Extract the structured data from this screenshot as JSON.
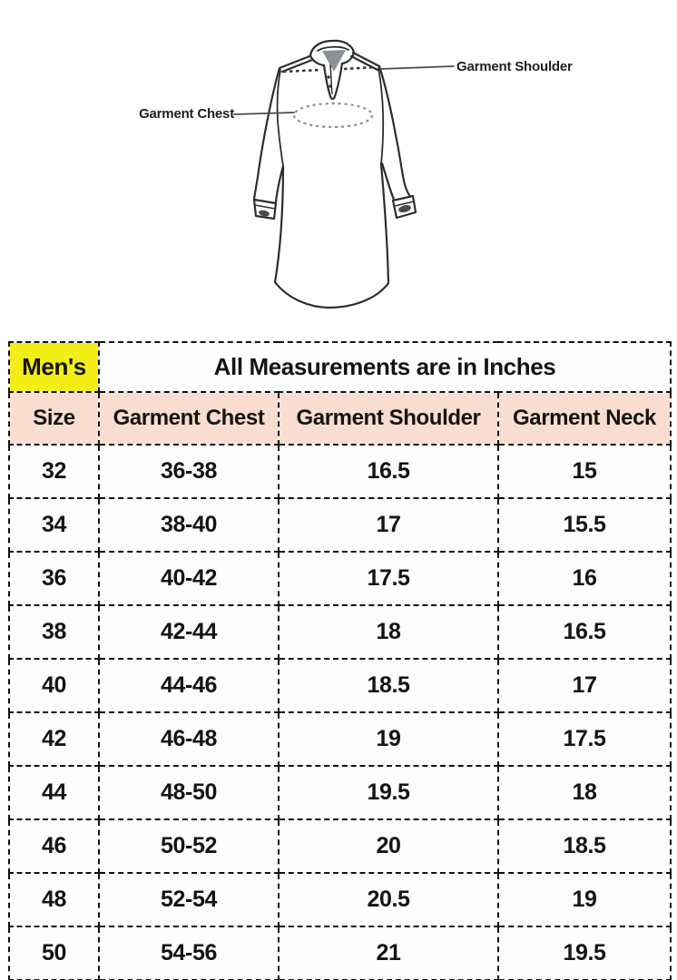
{
  "diagram": {
    "chest_label": "Garment Chest",
    "shoulder_label": "Garment Shoulder"
  },
  "table": {
    "group_label": "Men's",
    "title": "All Measurements are in Inches",
    "columns": [
      "Size",
      "Garment Chest",
      "Garment Shoulder",
      "Garment Neck"
    ],
    "column_keys": [
      "size",
      "chest",
      "shoulder",
      "neck"
    ],
    "rows": [
      [
        "32",
        "36-38",
        "16.5",
        "15"
      ],
      [
        "34",
        "38-40",
        "17",
        "15.5"
      ],
      [
        "36",
        "40-42",
        "17.5",
        "16"
      ],
      [
        "38",
        "42-44",
        "18",
        "16.5"
      ],
      [
        "40",
        "44-46",
        "18.5",
        "17"
      ],
      [
        "42",
        "46-48",
        "19",
        "17.5"
      ],
      [
        "44",
        "48-50",
        "19.5",
        "18"
      ],
      [
        "46",
        "50-52",
        "20",
        "18.5"
      ],
      [
        "48",
        "52-54",
        "20.5",
        "19"
      ],
      [
        "50",
        "54-56",
        "21",
        "19.5"
      ]
    ]
  },
  "colors": {
    "highlight_yellow": "#f2ee16",
    "header_peach": "#f8ddd0",
    "border_dark": "#101010",
    "sketch_line": "#2e2e2e",
    "collar_gray": "#8b9196",
    "cell_white": "#fdfdfd"
  }
}
